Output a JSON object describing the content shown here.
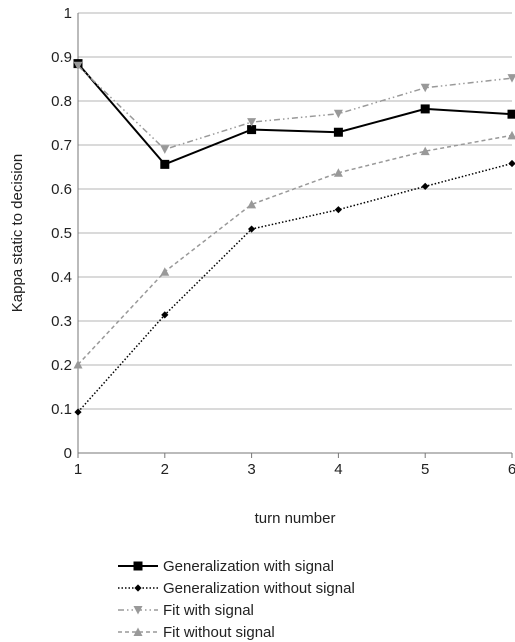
{
  "chart_data": {
    "type": "line",
    "title": "",
    "xlabel": "turn number",
    "ylabel": "Kappa static to decision",
    "x": [
      1,
      2,
      3,
      4,
      5,
      6
    ],
    "xlim": [
      1,
      6
    ],
    "ylim": [
      0,
      1
    ],
    "x_ticks": [
      "1",
      "2",
      "3",
      "4",
      "5",
      "6"
    ],
    "y_ticks": [
      "0",
      "0.1",
      "0.2",
      "0.3",
      "0.4",
      "0.5",
      "0.6",
      "0.7",
      "0.8",
      "0.9",
      "1"
    ],
    "grid": "horizontal",
    "legend_position": "bottom",
    "series": [
      {
        "name": "Generalization with signal",
        "values": [
          0.885,
          0.656,
          0.735,
          0.729,
          0.782,
          0.77
        ],
        "color": "#000000",
        "line_style": "solid",
        "marker": "square"
      },
      {
        "name": "Generalization without signal",
        "values": [
          0.093,
          0.314,
          0.509,
          0.553,
          0.606,
          0.658
        ],
        "color": "#000000",
        "line_style": "dotted",
        "marker": "diamond"
      },
      {
        "name": "Fit with signal",
        "values": [
          0.88,
          0.69,
          0.752,
          0.771,
          0.83,
          0.852
        ],
        "color": "#999999",
        "line_style": "dash-dot-dot",
        "marker": "triangle-down"
      },
      {
        "name": "Fit without signal",
        "values": [
          0.201,
          0.412,
          0.565,
          0.637,
          0.686,
          0.722
        ],
        "color": "#999999",
        "line_style": "dashed",
        "marker": "triangle-up"
      }
    ]
  }
}
